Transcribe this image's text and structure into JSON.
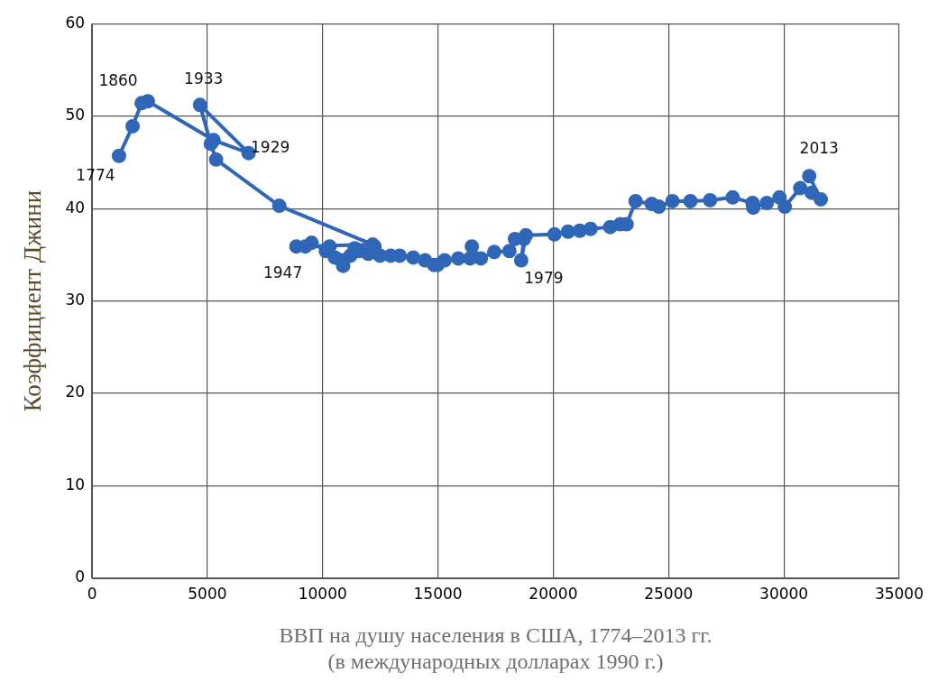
{
  "chart_data": {
    "type": "line",
    "xlabel": "ВВП на душу населения в США, 1774–2013 гг.\n(в международных долларах 1990 г.)",
    "ylabel": "Коэффициент Джини",
    "x": [
      1170,
      1760,
      2150,
      2420,
      5270,
      6790,
      4680,
      5150,
      5380,
      8120,
      12170,
      8860,
      9250,
      9520,
      10140,
      10300,
      10530,
      10810,
      10890,
      11200,
      11390,
      11590,
      11980,
      12250,
      12490,
      12950,
      13340,
      13930,
      14440,
      14830,
      14980,
      15290,
      15880,
      16390,
      16470,
      16860,
      17440,
      18100,
      18340,
      18730,
      18610,
      18810,
      20050,
      20640,
      21150,
      21620,
      22470,
      22900,
      23180,
      23570,
      24270,
      24580,
      25170,
      25950,
      26800,
      27780,
      28640,
      28670,
      29260,
      29810,
      30040,
      30710,
      31210,
      31600,
      31100
    ],
    "series": [
      {
        "color": "#2f66b8",
        "values": [
          45.7,
          48.9,
          51.4,
          51.6,
          47.4,
          46.0,
          51.2,
          47.0,
          45.3,
          40.3,
          36.1,
          35.9,
          35.9,
          36.3,
          35.4,
          35.9,
          34.7,
          34.4,
          33.8,
          34.9,
          35.7,
          35.4,
          35.1,
          35.9,
          34.9,
          34.9,
          34.9,
          34.7,
          34.4,
          33.9,
          33.9,
          34.4,
          34.6,
          34.6,
          35.9,
          34.6,
          35.3,
          35.4,
          36.7,
          36.7,
          34.4,
          37.1,
          37.2,
          37.5,
          37.6,
          37.8,
          38.0,
          38.3,
          38.3,
          40.8,
          40.5,
          40.2,
          40.8,
          40.8,
          40.9,
          41.2,
          40.6,
          40.1,
          40.6,
          41.2,
          40.2,
          42.2,
          41.7,
          41.0,
          43.5
        ]
      }
    ],
    "annotations": [
      {
        "text": "1774",
        "x": 1170,
        "y": 45.7
      },
      {
        "text": "1860",
        "x": 2150,
        "y": 51.4
      },
      {
        "text": "1933",
        "x": 4680,
        "y": 51.2
      },
      {
        "text": "1929",
        "x": 6790,
        "y": 46.0
      },
      {
        "text": "1947",
        "x": 8860,
        "y": 35.9
      },
      {
        "text": "1979",
        "x": 18610,
        "y": 34.4
      },
      {
        "text": "2013",
        "x": 31100,
        "y": 43.5
      }
    ],
    "xlim": [
      0,
      35000
    ],
    "xticks": [
      0,
      5000,
      10000,
      15000,
      20000,
      25000,
      30000,
      35000
    ],
    "ylim": [
      0,
      60
    ],
    "yticks": [
      0,
      10,
      20,
      30,
      40,
      50,
      60
    ],
    "grid": true,
    "marker": "circle",
    "line_style": "solid",
    "legend": false
  }
}
